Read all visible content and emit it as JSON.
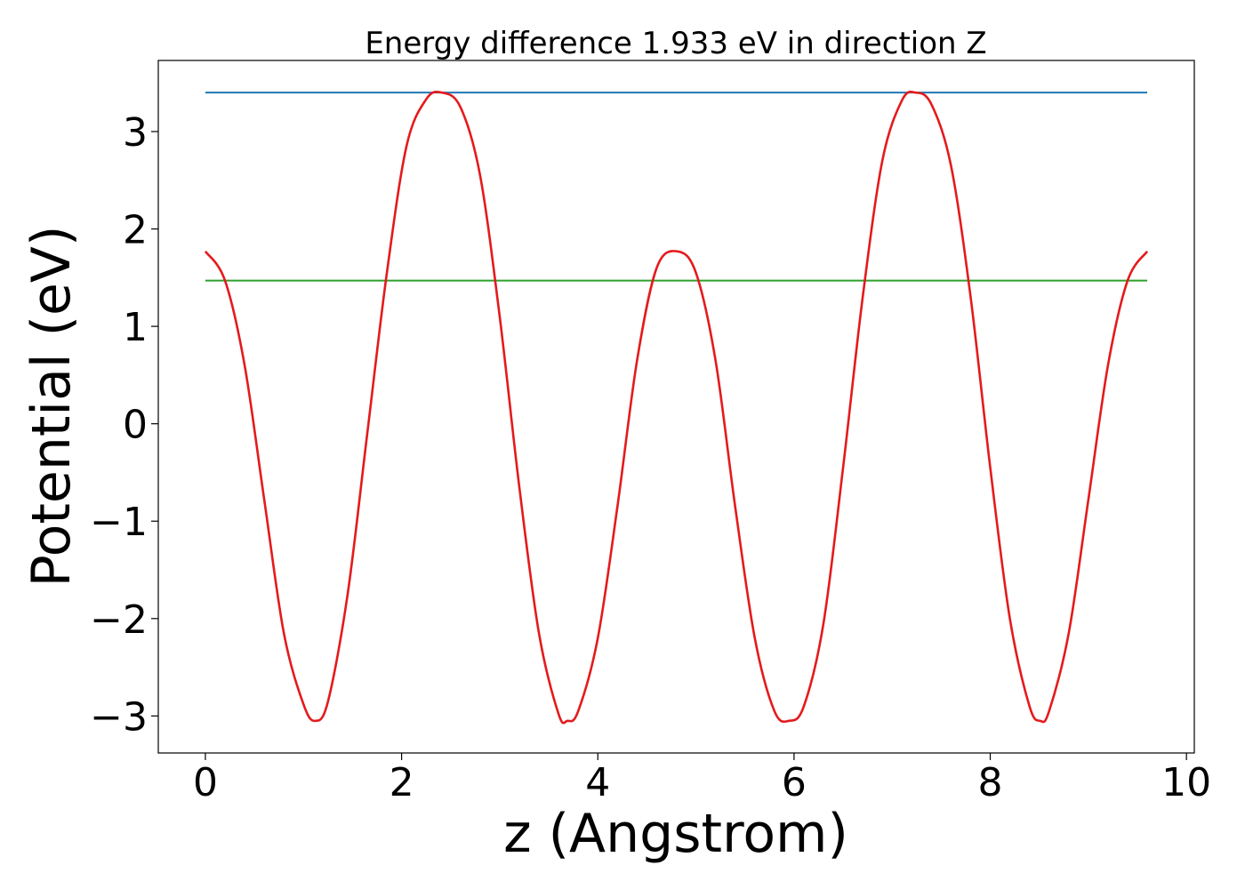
{
  "chart_data": {
    "type": "line",
    "title": "Energy difference 1.933 eV in direction Z",
    "xlabel": "z (Angstrom)",
    "ylabel": "Potential (eV)",
    "xlim": [
      -0.48,
      10.08
    ],
    "ylim": [
      -3.38,
      3.73
    ],
    "xticks": [
      0,
      2,
      4,
      6,
      8,
      10
    ],
    "yticks": [
      -3,
      -2,
      -1,
      0,
      1,
      2,
      3
    ],
    "xtick_labels": [
      "0",
      "2",
      "4",
      "6",
      "8",
      "10"
    ],
    "ytick_labels": [
      "−3",
      "−2",
      "−1",
      "0",
      "1",
      "2",
      "3"
    ],
    "grid": false,
    "series": [
      {
        "color": "#1f77b4",
        "x": [
          0,
          9.6
        ],
        "y": [
          3.4,
          3.4
        ]
      },
      {
        "color": "#2ca02c",
        "x": [
          0,
          9.6
        ],
        "y": [
          1.47,
          1.47
        ]
      },
      {
        "color": "#e41a1c",
        "x": [
          0,
          0.2,
          0.4,
          0.6,
          0.8,
          1.0,
          1.12,
          1.25,
          1.45,
          1.65,
          1.85,
          2.05,
          2.25,
          2.41,
          2.6,
          2.8,
          3.0,
          3.2,
          3.4,
          3.6,
          3.69,
          3.8,
          4.0,
          4.2,
          4.4,
          4.6,
          4.81,
          5.0,
          5.2,
          5.4,
          5.6,
          5.8,
          5.95,
          6.1,
          6.3,
          6.5,
          6.7,
          6.9,
          7.1,
          7.24,
          7.4,
          7.6,
          7.8,
          8.0,
          8.2,
          8.4,
          8.51,
          8.6,
          8.8,
          9.0,
          9.2,
          9.4,
          9.6
        ],
        "y": [
          1.77,
          1.47,
          0.6,
          -0.78,
          -2.15,
          -2.88,
          -3.05,
          -2.85,
          -1.75,
          -0.1,
          1.55,
          2.85,
          3.33,
          3.4,
          3.25,
          2.55,
          1.1,
          -0.65,
          -2.15,
          -2.98,
          -3.05,
          -2.95,
          -2.2,
          -0.85,
          0.65,
          1.6,
          1.77,
          1.55,
          0.65,
          -0.85,
          -2.2,
          -2.95,
          -3.05,
          -2.9,
          -2.05,
          -0.45,
          1.3,
          2.7,
          3.32,
          3.4,
          3.28,
          2.65,
          1.3,
          -0.45,
          -2.0,
          -2.9,
          -3.05,
          -2.95,
          -2.15,
          -0.78,
          0.6,
          1.47,
          1.77
        ]
      }
    ]
  }
}
